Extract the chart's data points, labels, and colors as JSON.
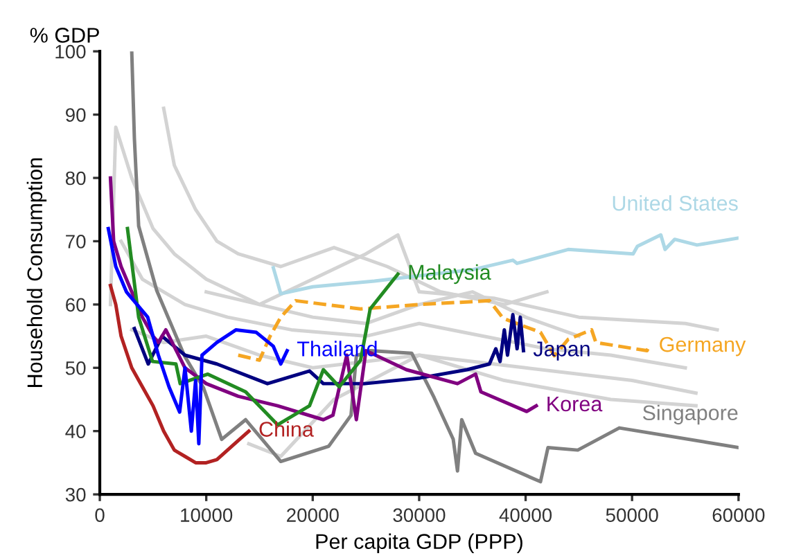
{
  "chart_data": {
    "type": "line",
    "xlabel": "Per capita GDP (PPP)",
    "ylabel": "Household Consumption",
    "annotations": [
      "% GDP"
    ],
    "xlim": [
      0,
      60000
    ],
    "ylim": [
      30,
      100
    ],
    "xticks": [
      0,
      10000,
      20000,
      30000,
      40000,
      50000,
      60000
    ],
    "yticks": [
      30,
      40,
      50,
      60,
      70,
      80,
      90,
      100
    ],
    "grid": false,
    "legend": false,
    "marker": "none",
    "series": [
      {
        "color": "#d3d3d3",
        "x": [
          1000,
          1500,
          3000,
          5000,
          7000,
          10000,
          15000,
          20000,
          25000,
          30000,
          35000,
          40000,
          45000
        ],
        "values": [
          60,
          88,
          80,
          72,
          68,
          64,
          60,
          58,
          57,
          60,
          62,
          58,
          55
        ]
      },
      {
        "color": "#d3d3d3",
        "x": [
          6000,
          7000,
          9000,
          11000,
          13000,
          17000,
          22000,
          27000,
          32000,
          38000,
          42000
        ],
        "values": [
          91,
          82,
          75,
          70,
          68,
          66,
          69,
          66,
          62,
          60,
          62
        ]
      },
      {
        "color": "#d3d3d3",
        "x": [
          2000,
          4000,
          8000,
          12000,
          18000,
          25000,
          30000,
          36000,
          42000,
          48000,
          55000
        ],
        "values": [
          70,
          64,
          60,
          58,
          56,
          55,
          57,
          55,
          53,
          52,
          50
        ]
      },
      {
        "color": "#d3d3d3",
        "x": [
          3000,
          6000,
          10000,
          15000,
          20000,
          30000,
          40000,
          50000,
          56000
        ],
        "values": [
          56,
          54,
          55,
          52,
          50,
          52,
          50,
          48,
          46
        ]
      },
      {
        "color": "#d3d3d3",
        "x": [
          10000,
          15000,
          20000,
          25000,
          28000,
          30000,
          37000,
          45000,
          55000,
          58000
        ],
        "values": [
          62,
          60,
          64,
          68,
          71,
          62,
          61,
          58,
          57,
          56
        ]
      },
      {
        "color": "#d3d3d3",
        "x": [
          14000,
          17000,
          22000,
          30000,
          38000,
          48000,
          56000
        ],
        "values": [
          38,
          36,
          45,
          52,
          48,
          45,
          44
        ]
      },
      {
        "name": "United States",
        "color": "#add8e6",
        "x": [
          16300,
          17000,
          20000,
          25800,
          32300,
          35000,
          38800,
          39200,
          44000,
          50100,
          50500,
          52700,
          53100,
          54000,
          56100,
          60000
        ],
        "values": [
          65.8,
          61.7,
          62.8,
          63.7,
          65,
          65.5,
          67,
          66.5,
          68.7,
          68,
          69.2,
          71,
          68.7,
          70.3,
          69.4,
          70.5
        ]
      },
      {
        "name": "Germany",
        "color": "#f5a623",
        "line_style": "dashed",
        "x": [
          13000,
          15000,
          16000,
          17000,
          18400,
          24500,
          30000,
          36600,
          37900,
          41400,
          42700,
          44000,
          46200,
          46600,
          51400,
          51600
        ],
        "values": [
          52,
          51.2,
          55,
          58,
          60.6,
          59.3,
          60,
          60.6,
          57.8,
          55.6,
          51.9,
          54.5,
          56,
          54,
          52.7,
          53.4
        ]
      },
      {
        "name": "Singapore",
        "color": "#808080",
        "x": [
          3000,
          3250,
          3650,
          5350,
          7950,
          9750,
          11450,
          13700,
          17000,
          21500,
          23600,
          24100,
          25400,
          29300,
          31400,
          33200,
          33600,
          34000,
          35300,
          41400,
          42100,
          44900,
          48800,
          60000
        ],
        "values": [
          100,
          86.2,
          72.4,
          62.2,
          51.9,
          46.8,
          38.7,
          41.8,
          35.2,
          37.6,
          42.5,
          51.9,
          52.7,
          52.3,
          45.3,
          38.7,
          33.7,
          41.8,
          36.5,
          32,
          37.4,
          37,
          40.5,
          37.4
        ]
      },
      {
        "name": "Japan",
        "color": "#000080",
        "x": [
          3250,
          4550,
          5850,
          8000,
          11000,
          15750,
          19700,
          21000,
          24900,
          30100,
          34500,
          36600,
          37200,
          37600,
          38000,
          38300,
          38800,
          39200,
          39500,
          39800
        ],
        "values": [
          56.2,
          50.6,
          55,
          52,
          50.6,
          47.5,
          49.5,
          47.5,
          47.5,
          48.4,
          49.7,
          50.6,
          53,
          51,
          56,
          52,
          58.4,
          53,
          58,
          52.7
        ]
      },
      {
        "name": "Korea",
        "color": "#800080",
        "x": [
          1000,
          1300,
          2000,
          3000,
          4000,
          5000,
          5500,
          6200,
          8000,
          10000,
          13000,
          16700,
          21000,
          21900,
          23200,
          24100,
          25000,
          28800,
          33600,
          35300,
          35800,
          40100,
          41000
        ],
        "values": [
          80,
          70,
          66,
          62,
          58,
          55,
          54,
          56,
          50,
          47.5,
          45.5,
          44,
          41.8,
          42.5,
          52,
          41.8,
          52.7,
          49.7,
          47.5,
          49,
          46.2,
          43.1,
          44
        ]
      },
      {
        "name": "Malaysia",
        "color": "#228b22",
        "x": [
          2600,
          3200,
          3650,
          4950,
          7150,
          7550,
          10150,
          13700,
          16700,
          19700,
          21000,
          22500,
          24500,
          25400,
          28000
        ],
        "values": [
          72,
          64,
          58,
          51,
          50.6,
          47.5,
          49,
          46.2,
          41,
          44,
          49.7,
          47,
          51.2,
          59.3,
          64.8
        ]
      },
      {
        "name": "Thailand",
        "color": "#0000ff",
        "x": [
          800,
          1500,
          2500,
          3500,
          4500,
          5500,
          6500,
          7500,
          8000,
          8600,
          9000,
          9300,
          9600,
          11000,
          12800,
          14700,
          16300,
          17000,
          17600
        ],
        "values": [
          72,
          66,
          62,
          60,
          58,
          52,
          47,
          43,
          50,
          40,
          48,
          38,
          52,
          54,
          56,
          55.6,
          53.4,
          50.6,
          52.7
        ]
      },
      {
        "name": "China",
        "color": "#b22222",
        "x": [
          1000,
          1500,
          2000,
          3000,
          4000,
          5000,
          6000,
          7000,
          8000,
          9000,
          10000,
          11000,
          12000,
          13000,
          14000
        ],
        "values": [
          63,
          60,
          55,
          50,
          47,
          44,
          40,
          37,
          36,
          35,
          35,
          35.5,
          37,
          38.5,
          40
        ]
      }
    ]
  }
}
